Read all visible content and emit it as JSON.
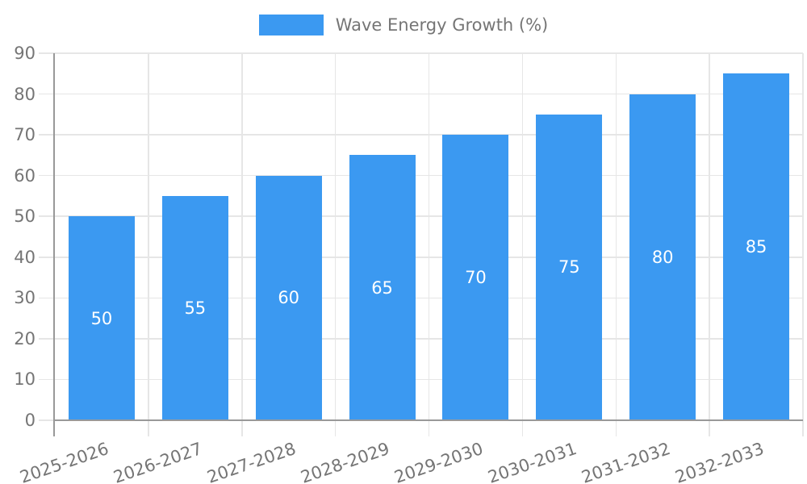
{
  "chart_data": {
    "type": "bar",
    "title": "",
    "xlabel": "",
    "ylabel": "",
    "categories": [
      "2025-2026",
      "2026-2027",
      "2027-2028",
      "2028-2029",
      "2029-2030",
      "2030-2031",
      "2031-2032",
      "2032-2033"
    ],
    "series": [
      {
        "name": "Wave Energy Growth (%)",
        "values": [
          50,
          55,
          60,
          65,
          70,
          75,
          80,
          85
        ]
      }
    ],
    "value_labels": [
      "50",
      "55",
      "60",
      "65",
      "70",
      "75",
      "80",
      "85"
    ],
    "ylim": [
      0,
      90
    ],
    "yticks": [
      0,
      10,
      20,
      30,
      40,
      50,
      60,
      70,
      80,
      90
    ],
    "grid": true,
    "legend_position": "top",
    "x_tick_rotation_deg": -19,
    "colors": {
      "bar": "#3b99f1",
      "grid": "#e6e6e6",
      "axis": "#999999",
      "tick_text": "#757575",
      "value_label": "#ffffff"
    }
  }
}
